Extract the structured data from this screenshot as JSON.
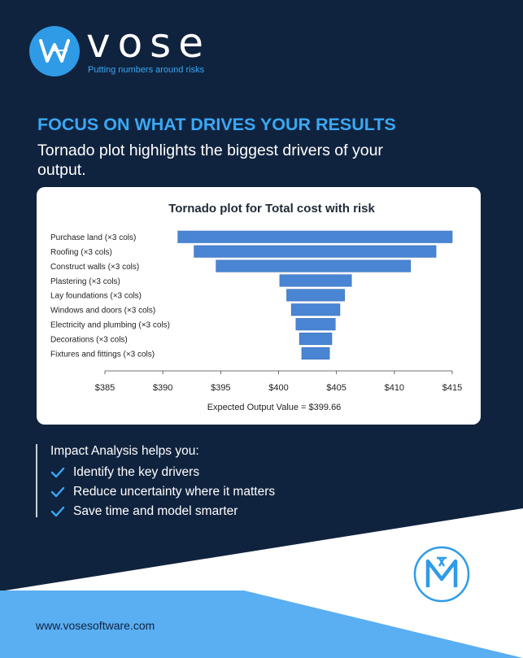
{
  "brand": {
    "name": "vose",
    "tagline": "Putting numbers around risks",
    "website": "www.vosesoftware.com"
  },
  "colors": {
    "navy": "#10233e",
    "accent_blue": "#3aa8f5",
    "light_blue": "#5aaef2",
    "bar_blue": "#4a85d4",
    "white": "#ffffff"
  },
  "headline": "FOCUS ON WHAT DRIVES YOUR RESULTS",
  "subhead": "Tornado plot highlights the biggest drivers of your output.",
  "chart_data": {
    "type": "bar",
    "orientation": "horizontal",
    "style": "tornado",
    "title": "Tornado plot for Total cost with risk",
    "categories": [
      "Purchase land (×3 cols)",
      "Roofing (×3 cols)",
      "Construct walls (×3 cols)",
      "Plastering (×3 cols)",
      "Lay foundations (×3 cols)",
      "Windows and doors (×3 cols)",
      "Electricity and plumbing (×3 cols)",
      "Decorations (×3 cols)",
      "Fixtures and fittings (×3 cols)"
    ],
    "low": [
      391.3,
      392.7,
      394.6,
      400.1,
      400.7,
      401.1,
      401.5,
      401.8,
      402.0
    ],
    "high": [
      415.0,
      413.6,
      411.4,
      406.3,
      405.7,
      405.3,
      404.9,
      404.6,
      404.4
    ],
    "xlim": [
      385,
      415
    ],
    "xticks": [
      "$385",
      "$390",
      "$395",
      "$400",
      "$405",
      "$410",
      "$415"
    ],
    "xtick_values": [
      385,
      390,
      395,
      400,
      405,
      410,
      415
    ],
    "annotation": "Expected Output Value = $399.66",
    "bar_color": "#4a85d4"
  },
  "benefits": {
    "intro": "Impact Analysis helps you:",
    "items": [
      "Identify the key drivers",
      "Reduce uncertainty where it matters",
      "Save time and model smarter"
    ]
  },
  "icons": {
    "logo": "vose-w-logo-icon",
    "check": "check-icon",
    "badge": "modelrisk-m-icon"
  }
}
